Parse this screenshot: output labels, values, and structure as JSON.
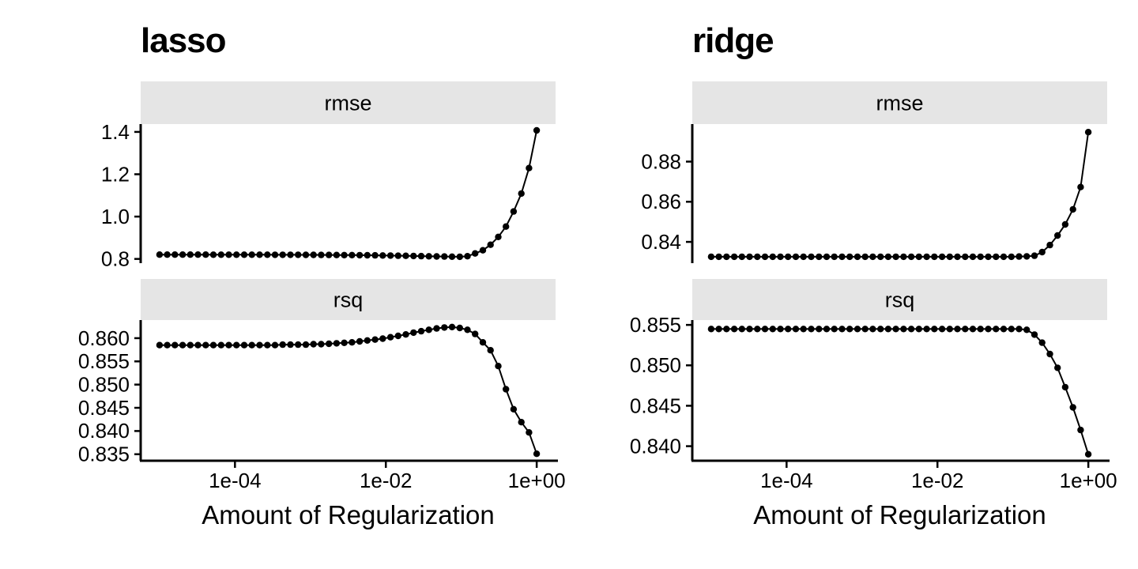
{
  "style": {
    "background": "#FFFFFF",
    "strip_bg": "#E5E5E5",
    "strip_text_color": "#111111",
    "axis_color": "#000000",
    "text_color": "#000000",
    "point_color": "#000000",
    "line_color": "#000000"
  },
  "chart_data": [
    {
      "type": "line",
      "title": "lasso",
      "xlabel": "Amount of Regularization",
      "x_scale": "log10",
      "x_range_log10": [
        -5.25,
        0.25
      ],
      "x_ticks": [
        {
          "label": "1e-04",
          "log10": -4
        },
        {
          "label": "1e-02",
          "log10": -2
        },
        {
          "label": "1e+00",
          "log10": 0
        }
      ],
      "x_log10": [
        -5.0,
        -4.898,
        -4.796,
        -4.694,
        -4.592,
        -4.49,
        -4.388,
        -4.286,
        -4.184,
        -4.082,
        -3.98,
        -3.878,
        -3.776,
        -3.673,
        -3.571,
        -3.469,
        -3.367,
        -3.265,
        -3.163,
        -3.061,
        -2.959,
        -2.857,
        -2.755,
        -2.653,
        -2.551,
        -2.449,
        -2.347,
        -2.245,
        -2.143,
        -2.041,
        -1.939,
        -1.837,
        -1.735,
        -1.633,
        -1.531,
        -1.429,
        -1.327,
        -1.224,
        -1.122,
        -1.02,
        -0.918,
        -0.816,
        -0.714,
        -0.612,
        -0.51,
        -0.408,
        -0.306,
        -0.204,
        -0.102,
        0.0
      ],
      "facets": [
        {
          "label": "rmse",
          "y_range": [
            0.78,
            1.437
          ],
          "y_ticks": [
            {
              "label": "1.4",
              "value": 1.4
            },
            {
              "label": "1.2",
              "value": 1.2
            },
            {
              "label": "1.0",
              "value": 1.0
            },
            {
              "label": "0.8",
              "value": 0.8
            }
          ],
          "values": [
            0.8203,
            0.8203,
            0.8203,
            0.8203,
            0.8202,
            0.8202,
            0.8202,
            0.8201,
            0.8201,
            0.8201,
            0.82,
            0.82,
            0.8199,
            0.8199,
            0.8198,
            0.8197,
            0.8196,
            0.8195,
            0.8194,
            0.8193,
            0.8191,
            0.8189,
            0.8187,
            0.8185,
            0.8182,
            0.8179,
            0.8176,
            0.8172,
            0.8168,
            0.8163,
            0.8158,
            0.8152,
            0.8146,
            0.814,
            0.8133,
            0.8126,
            0.8119,
            0.8112,
            0.8106,
            0.8102,
            0.813,
            0.826,
            0.841,
            0.867,
            0.904,
            0.953,
            1.024,
            1.109,
            1.229,
            1.407
          ]
        },
        {
          "label": "rsq",
          "y_range": [
            0.8336,
            0.8639
          ],
          "y_ticks": [
            {
              "label": "0.860",
              "value": 0.86
            },
            {
              "label": "0.855",
              "value": 0.855
            },
            {
              "label": "0.850",
              "value": 0.85
            },
            {
              "label": "0.845",
              "value": 0.845
            },
            {
              "label": "0.840",
              "value": 0.84
            },
            {
              "label": "0.835",
              "value": 0.835
            }
          ],
          "values": [
            0.8585,
            0.8585,
            0.8585,
            0.8585,
            0.8585,
            0.8585,
            0.8585,
            0.8585,
            0.8585,
            0.8585,
            0.8585,
            0.8585,
            0.8585,
            0.8585,
            0.8585,
            0.8585,
            0.8586,
            0.8586,
            0.8586,
            0.8586,
            0.8587,
            0.8587,
            0.8588,
            0.8589,
            0.859,
            0.8591,
            0.8593,
            0.8595,
            0.8597,
            0.8599,
            0.8602,
            0.8605,
            0.8608,
            0.8612,
            0.8615,
            0.8618,
            0.8621,
            0.8623,
            0.8624,
            0.8622,
            0.8618,
            0.8609,
            0.8591,
            0.8574,
            0.854,
            0.849,
            0.8447,
            0.8419,
            0.8397,
            0.8351
          ]
        }
      ]
    },
    {
      "type": "line",
      "title": "ridge",
      "xlabel": "Amount of Regularization",
      "x_scale": "log10",
      "x_range_log10": [
        -5.25,
        0.25
      ],
      "x_ticks": [
        {
          "label": "1e-04",
          "log10": -4
        },
        {
          "label": "1e-02",
          "log10": -2
        },
        {
          "label": "1e+00",
          "log10": 0
        }
      ],
      "x_log10": [
        -5.0,
        -4.898,
        -4.796,
        -4.694,
        -4.592,
        -4.49,
        -4.388,
        -4.286,
        -4.184,
        -4.082,
        -3.98,
        -3.878,
        -3.776,
        -3.673,
        -3.571,
        -3.469,
        -3.367,
        -3.265,
        -3.163,
        -3.061,
        -2.959,
        -2.857,
        -2.755,
        -2.653,
        -2.551,
        -2.449,
        -2.347,
        -2.245,
        -2.143,
        -2.041,
        -1.939,
        -1.837,
        -1.735,
        -1.633,
        -1.531,
        -1.429,
        -1.327,
        -1.224,
        -1.122,
        -1.02,
        -0.918,
        -0.816,
        -0.714,
        -0.612,
        -0.51,
        -0.408,
        -0.306,
        -0.204,
        -0.102,
        0.0
      ],
      "facets": [
        {
          "label": "rmse",
          "y_range": [
            0.8294,
            0.8987
          ],
          "y_ticks": [
            {
              "label": "0.88",
              "value": 0.88
            },
            {
              "label": "0.86",
              "value": 0.86
            },
            {
              "label": "0.84",
              "value": 0.84
            }
          ],
          "values": [
            0.8326,
            0.8326,
            0.8326,
            0.8326,
            0.8326,
            0.8326,
            0.8326,
            0.8326,
            0.8326,
            0.8326,
            0.8326,
            0.8326,
            0.8326,
            0.8326,
            0.8326,
            0.8326,
            0.8326,
            0.8326,
            0.8326,
            0.8326,
            0.8326,
            0.8326,
            0.8326,
            0.8326,
            0.8326,
            0.8326,
            0.8326,
            0.8326,
            0.8326,
            0.8326,
            0.8326,
            0.8326,
            0.8326,
            0.8326,
            0.8326,
            0.8326,
            0.8326,
            0.8326,
            0.8326,
            0.8326,
            0.8327,
            0.8328,
            0.8331,
            0.8349,
            0.8384,
            0.8432,
            0.8487,
            0.8562,
            0.8673,
            0.8947
          ]
        },
        {
          "label": "rsq",
          "y_range": [
            0.8382,
            0.8556
          ],
          "y_ticks": [
            {
              "label": "0.855",
              "value": 0.855
            },
            {
              "label": "0.850",
              "value": 0.85
            },
            {
              "label": "0.845",
              "value": 0.845
            },
            {
              "label": "0.840",
              "value": 0.84
            }
          ],
          "values": [
            0.8545,
            0.8545,
            0.8545,
            0.8545,
            0.8545,
            0.8545,
            0.8545,
            0.8545,
            0.8545,
            0.8545,
            0.8545,
            0.8545,
            0.8545,
            0.8545,
            0.8545,
            0.8545,
            0.8545,
            0.8545,
            0.8545,
            0.8545,
            0.8545,
            0.8545,
            0.8545,
            0.8545,
            0.8545,
            0.8545,
            0.8545,
            0.8545,
            0.8545,
            0.8545,
            0.8545,
            0.8545,
            0.8545,
            0.8545,
            0.8545,
            0.8545,
            0.8545,
            0.8545,
            0.8545,
            0.8545,
            0.8545,
            0.8544,
            0.8538,
            0.8528,
            0.8514,
            0.8497,
            0.8473,
            0.8448,
            0.842,
            0.839
          ]
        }
      ]
    }
  ]
}
